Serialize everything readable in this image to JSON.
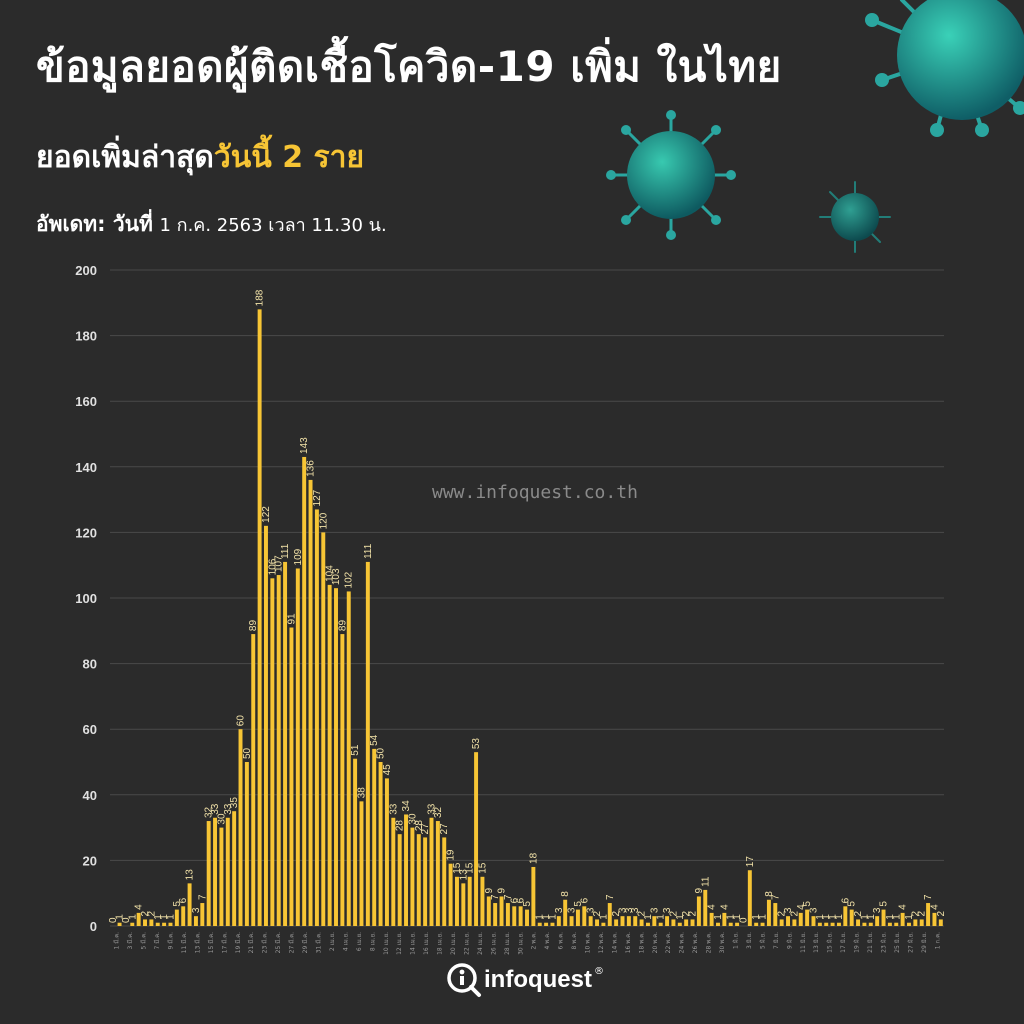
{
  "header": {
    "title": "ข้อมูลยอดผู้ติดเชื้อโควิด-19 เพิ่ม ในไทย",
    "subtitle_prefix": "ยอดเพิ่มล่าสุด",
    "subtitle_highlight": "วันนี้ 2 ราย",
    "update_label": "อัพเดท: วันที่",
    "update_value": "1 ก.ค. 2563 เวลา 11.30 น."
  },
  "watermark": "www.infoquest.co.th",
  "logo_text": "infoquest",
  "logo_mark": "®",
  "colors": {
    "background": "#2b2b2b",
    "bar": "#f7c535",
    "grid": "#4a4a4a",
    "highlight": "#f7c535",
    "virus": "#1f9c8c"
  },
  "icons": [
    "virus-icon",
    "infoquest-logo-icon"
  ],
  "chart_data": {
    "type": "bar",
    "ylim": [
      0,
      200
    ],
    "yticks": [
      0,
      20,
      40,
      60,
      80,
      100,
      120,
      140,
      160,
      180,
      200
    ],
    "grid": true,
    "values": [
      0,
      1,
      0,
      1,
      4,
      2,
      2,
      1,
      1,
      1,
      5,
      6,
      13,
      3,
      7,
      32,
      33,
      30,
      33,
      35,
      60,
      50,
      89,
      188,
      122,
      106,
      107,
      111,
      91,
      109,
      143,
      136,
      127,
      120,
      104,
      103,
      89,
      102,
      51,
      38,
      111,
      54,
      50,
      45,
      33,
      28,
      34,
      30,
      28,
      27,
      33,
      32,
      27,
      19,
      15,
      13,
      15,
      53,
      15,
      9,
      7,
      9,
      7,
      6,
      6,
      5,
      18,
      1,
      1,
      1,
      3,
      8,
      3,
      5,
      6,
      3,
      2,
      1,
      7,
      2,
      3,
      3,
      3,
      2,
      1,
      3,
      1,
      3,
      2,
      1,
      2,
      2,
      9,
      11,
      4,
      1,
      4,
      1,
      1,
      0,
      17,
      1,
      1,
      8,
      7,
      2,
      3,
      2,
      4,
      5,
      3,
      1,
      1,
      1,
      1,
      6,
      5,
      2,
      1,
      1,
      3,
      5,
      1,
      1,
      4,
      1,
      2,
      2,
      7,
      4,
      2
    ],
    "labels": [
      "0",
      "1",
      "0",
      "1",
      "4",
      "2",
      "2",
      "1",
      "1",
      "1",
      "5",
      "6",
      "13",
      "3",
      "7",
      "32",
      "33",
      "30",
      "33",
      "35",
      "60",
      "50",
      "89",
      "188",
      "122",
      "106",
      "107",
      "111",
      "91",
      "109",
      "143",
      "136",
      "127",
      "120",
      "104",
      "103",
      "89",
      "102",
      "51",
      "38",
      "111",
      "54",
      "50",
      "45",
      "33",
      "28",
      "34",
      "30",
      "28",
      "27",
      "33",
      "32",
      "27",
      "19",
      "15",
      "13",
      "15",
      "53",
      "15",
      "9",
      "7",
      "9",
      "7",
      "6",
      "6",
      "5",
      "18",
      "1",
      "1",
      "1",
      "3",
      "8",
      "3",
      "5",
      "6",
      "3",
      "2",
      "1",
      "7",
      "2",
      "3",
      "3",
      "3",
      "2",
      "1",
      "3",
      "1",
      "3",
      "2",
      "1",
      "2",
      "2",
      "9",
      "11",
      "4",
      "1",
      "4",
      "1",
      "1",
      "0",
      "17",
      "1",
      "1",
      "8",
      "7",
      "2",
      "3",
      "2",
      "4",
      "5",
      "3",
      "1",
      "1",
      "1",
      "1",
      "6",
      "5",
      "2",
      "1",
      "1",
      "3",
      "5",
      "1",
      "1",
      "4",
      "1",
      "2",
      "2",
      "7",
      "4",
      "2"
    ],
    "categories": [
      "1 มี.ค.",
      "3 มี.ค.",
      "5 มี.ค.",
      "7 มี.ค.",
      "9 มี.ค.",
      "11 มี.ค.",
      "13 มี.ค.",
      "15 มี.ค.",
      "17 มี.ค.",
      "19 มี.ค.",
      "21 มี.ค.",
      "23 มี.ค.",
      "25 มี.ค.",
      "27 มี.ค.",
      "29 มี.ค.",
      "31 มี.ค.",
      "2 เม.ย.",
      "4 เม.ย.",
      "6 เม.ย.",
      "8 เม.ย.",
      "10 เม.ย.",
      "12 เม.ย.",
      "14 เม.ย.",
      "16 เม.ย.",
      "18 เม.ย.",
      "20 เม.ย.",
      "22 เม.ย.",
      "24 เม.ย.",
      "26 เม.ย.",
      "28 เม.ย.",
      "30 เม.ย.",
      "2 พ.ค.",
      "4 พ.ค.",
      "6 พ.ค.",
      "8 พ.ค.",
      "10 พ.ค.",
      "12 พ.ค.",
      "14 พ.ค.",
      "16 พ.ค.",
      "18 พ.ค.",
      "20 พ.ค.",
      "22 พ.ค.",
      "24 พ.ค.",
      "26 พ.ค.",
      "28 พ.ค.",
      "30 พ.ค.",
      "1 มิ.ย.",
      "3 มิ.ย.",
      "5 มิ.ย.",
      "7 มิ.ย.",
      "9 มิ.ย.",
      "11 มิ.ย.",
      "13 มิ.ย.",
      "15 มิ.ย.",
      "17 มิ.ย.",
      "19 มิ.ย.",
      "21 มิ.ย.",
      "23 มิ.ย.",
      "25 มิ.ย.",
      "27 มิ.ย.",
      "29 มิ.ย.",
      "1 ก.ค."
    ]
  }
}
